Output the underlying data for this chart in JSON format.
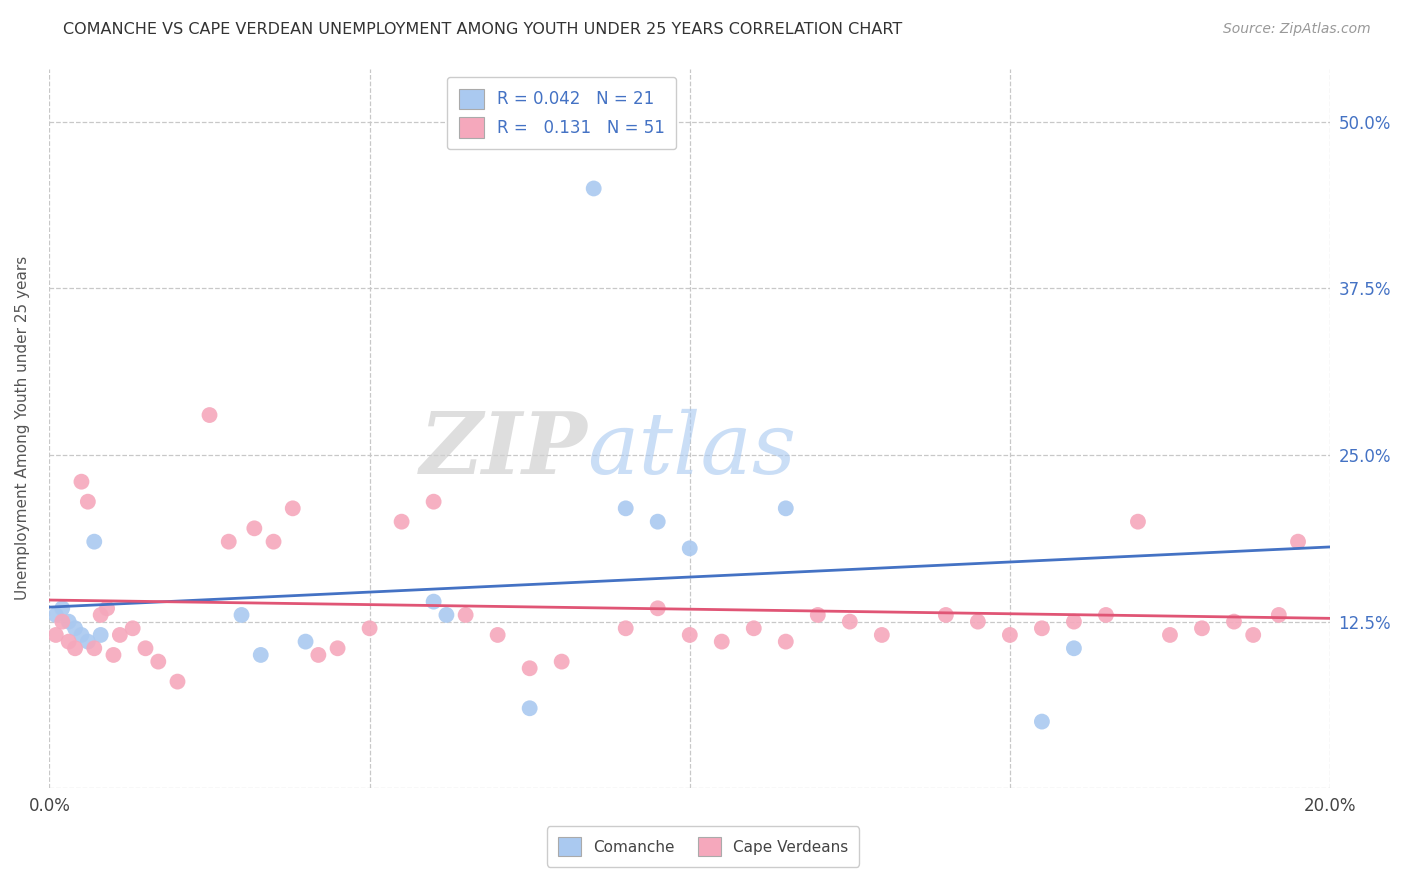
{
  "title": "COMANCHE VS CAPE VERDEAN UNEMPLOYMENT AMONG YOUTH UNDER 25 YEARS CORRELATION CHART",
  "source": "Source: ZipAtlas.com",
  "ylabel": "Unemployment Among Youth under 25 years",
  "xlim": [
    0.0,
    0.2
  ],
  "ylim": [
    0.0,
    0.54
  ],
  "yticks": [
    0.0,
    0.125,
    0.25,
    0.375,
    0.5
  ],
  "ytick_labels_right": [
    "",
    "12.5%",
    "25.0%",
    "37.5%",
    "50.0%"
  ],
  "xticks": [
    0.0,
    0.05,
    0.1,
    0.15,
    0.2
  ],
  "xtick_labels": [
    "0.0%",
    "",
    "",
    "",
    "20.0%"
  ],
  "comanche_R": "0.042",
  "comanche_N": "21",
  "capeverdean_R": "0.131",
  "capeverdean_N": "51",
  "comanche_color": "#aac9f0",
  "capeverdean_color": "#f5a8bc",
  "comanche_line_color": "#4472c4",
  "capeverdean_line_color": "#e05575",
  "right_tick_color": "#4472c4",
  "background_color": "#ffffff",
  "grid_color": "#c8c8c8",
  "watermark": "ZIPatlas",
  "comanche_x": [
    0.001,
    0.002,
    0.003,
    0.004,
    0.005,
    0.006,
    0.007,
    0.008,
    0.03,
    0.033,
    0.04,
    0.06,
    0.062,
    0.075,
    0.085,
    0.09,
    0.095,
    0.1,
    0.115,
    0.155,
    0.16
  ],
  "comanche_y": [
    0.13,
    0.135,
    0.125,
    0.12,
    0.115,
    0.11,
    0.185,
    0.115,
    0.13,
    0.1,
    0.11,
    0.14,
    0.13,
    0.06,
    0.45,
    0.21,
    0.2,
    0.18,
    0.21,
    0.05,
    0.105
  ],
  "capeverdean_x": [
    0.001,
    0.002,
    0.003,
    0.004,
    0.005,
    0.006,
    0.007,
    0.008,
    0.009,
    0.01,
    0.011,
    0.013,
    0.015,
    0.017,
    0.02,
    0.025,
    0.028,
    0.032,
    0.035,
    0.038,
    0.042,
    0.045,
    0.05,
    0.055,
    0.06,
    0.065,
    0.07,
    0.075,
    0.08,
    0.09,
    0.095,
    0.1,
    0.105,
    0.11,
    0.115,
    0.12,
    0.125,
    0.13,
    0.14,
    0.145,
    0.15,
    0.155,
    0.16,
    0.165,
    0.17,
    0.175,
    0.18,
    0.185,
    0.188,
    0.192,
    0.195
  ],
  "capeverdean_y": [
    0.115,
    0.125,
    0.11,
    0.105,
    0.23,
    0.215,
    0.105,
    0.13,
    0.135,
    0.1,
    0.115,
    0.12,
    0.105,
    0.095,
    0.08,
    0.28,
    0.185,
    0.195,
    0.185,
    0.21,
    0.1,
    0.105,
    0.12,
    0.2,
    0.215,
    0.13,
    0.115,
    0.09,
    0.095,
    0.12,
    0.135,
    0.115,
    0.11,
    0.12,
    0.11,
    0.13,
    0.125,
    0.115,
    0.13,
    0.125,
    0.115,
    0.12,
    0.125,
    0.13,
    0.2,
    0.115,
    0.12,
    0.125,
    0.115,
    0.13,
    0.185
  ]
}
